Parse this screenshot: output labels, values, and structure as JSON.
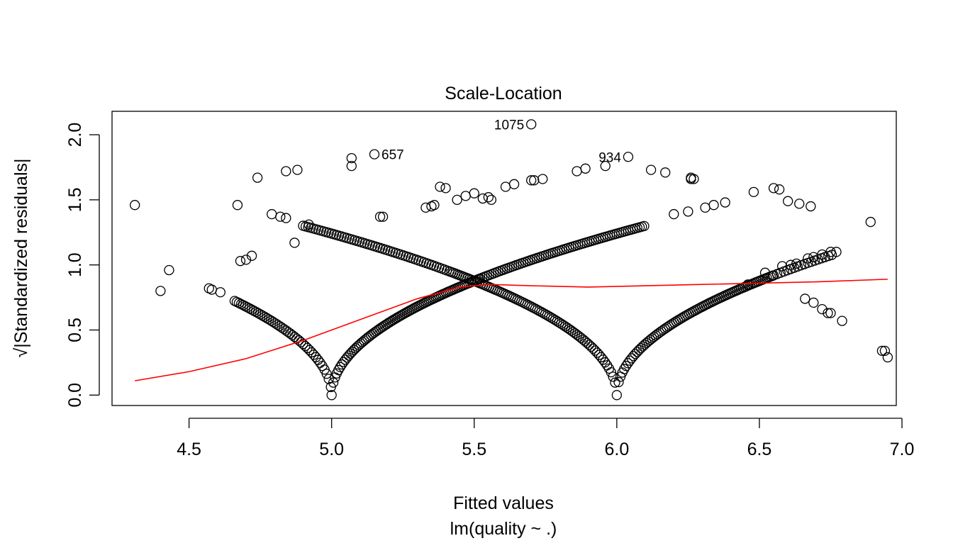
{
  "chart_data": {
    "type": "scatter",
    "title": "Scale-Location",
    "xlabel": "Fitted values",
    "subtitle": "lm(quality ~ .)",
    "ylabel": "√|Standardized residuals|",
    "xlim": [
      4.23,
      6.98
    ],
    "ylim": [
      -0.08,
      2.18
    ],
    "x_ticks": [
      4.5,
      5.0,
      5.5,
      6.0,
      6.5,
      7.0
    ],
    "x_tick_labels": [
      "4.5",
      "5.0",
      "5.5",
      "6.0",
      "6.5",
      "7.0"
    ],
    "y_ticks": [
      0.0,
      0.5,
      1.0,
      1.5,
      2.0
    ],
    "y_tick_labels": [
      "0.0",
      "0.5",
      "1.0",
      "1.5",
      "2.0"
    ],
    "grid": false,
    "series": [
      {
        "kind": "points",
        "color": "#000000",
        "points": [
          [
            4.31,
            1.46
          ],
          [
            4.4,
            0.8
          ],
          [
            4.43,
            0.96
          ],
          [
            4.57,
            0.82
          ],
          [
            4.58,
            0.81
          ],
          [
            4.61,
            0.79
          ],
          [
            4.67,
            1.46
          ],
          [
            4.68,
            1.03
          ],
          [
            4.7,
            1.04
          ],
          [
            4.72,
            1.07
          ],
          [
            4.74,
            1.67
          ],
          [
            4.79,
            1.39
          ],
          [
            4.82,
            1.37
          ],
          [
            4.84,
            1.36
          ],
          [
            4.84,
            1.72
          ],
          [
            4.87,
            1.17
          ],
          [
            4.88,
            1.73
          ],
          [
            4.92,
            1.31
          ],
          [
            5.07,
            1.82
          ],
          [
            5.07,
            1.76
          ],
          [
            5.15,
            1.85
          ],
          [
            5.17,
            1.37
          ],
          [
            5.18,
            1.37
          ],
          [
            5.38,
            1.6
          ],
          [
            5.4,
            1.59
          ],
          [
            5.5,
            1.55
          ],
          [
            5.55,
            1.52
          ],
          [
            5.61,
            1.6
          ],
          [
            5.64,
            1.62
          ],
          [
            5.7,
            1.65
          ],
          [
            5.71,
            1.65
          ],
          [
            5.74,
            1.66
          ],
          [
            5.7,
            2.08
          ],
          [
            5.86,
            1.72
          ],
          [
            5.89,
            1.74
          ],
          [
            5.96,
            1.76
          ],
          [
            6.04,
            1.83
          ],
          [
            6.12,
            1.73
          ],
          [
            6.17,
            1.71
          ],
          [
            6.26,
            1.67
          ],
          [
            6.26,
            1.66
          ],
          [
            6.27,
            1.66
          ],
          [
            6.2,
            1.39
          ],
          [
            6.25,
            1.41
          ],
          [
            6.31,
            1.44
          ],
          [
            6.34,
            1.46
          ],
          [
            6.38,
            1.48
          ],
          [
            6.48,
            1.56
          ],
          [
            6.55,
            1.59
          ],
          [
            6.57,
            1.58
          ],
          [
            6.6,
            1.49
          ],
          [
            6.64,
            1.47
          ],
          [
            6.68,
            1.45
          ],
          [
            6.89,
            1.33
          ],
          [
            6.79,
            0.57
          ],
          [
            6.93,
            0.34
          ],
          [
            6.94,
            0.34
          ],
          [
            6.95,
            0.29
          ],
          [
            6.77,
            1.1
          ],
          [
            6.75,
            1.1
          ],
          [
            6.72,
            1.08
          ],
          [
            6.69,
            1.06
          ],
          [
            6.67,
            1.05
          ],
          [
            6.63,
            1.01
          ],
          [
            6.61,
            1.0
          ],
          [
            6.58,
            0.99
          ],
          [
            6.52,
            0.94
          ],
          [
            6.46,
            0.85
          ],
          [
            6.72,
            0.66
          ],
          [
            6.74,
            0.63
          ],
          [
            6.75,
            0.63
          ],
          [
            6.69,
            0.71
          ],
          [
            6.66,
            0.74
          ],
          [
            5.33,
            1.44
          ],
          [
            5.35,
            1.45
          ],
          [
            5.36,
            1.46
          ],
          [
            5.44,
            1.5
          ],
          [
            5.47,
            1.53
          ],
          [
            5.53,
            1.51
          ],
          [
            5.56,
            1.5
          ]
        ]
      },
      {
        "kind": "smoother",
        "color": "#ff0000",
        "points": [
          [
            4.31,
            0.11
          ],
          [
            4.5,
            0.18
          ],
          [
            4.7,
            0.28
          ],
          [
            4.9,
            0.42
          ],
          [
            5.1,
            0.58
          ],
          [
            5.3,
            0.74
          ],
          [
            5.45,
            0.83
          ],
          [
            5.55,
            0.85
          ],
          [
            5.7,
            0.84
          ],
          [
            5.9,
            0.83
          ],
          [
            6.1,
            0.84
          ],
          [
            6.3,
            0.85
          ],
          [
            6.5,
            0.86
          ],
          [
            6.7,
            0.87
          ],
          [
            6.95,
            0.89
          ]
        ]
      }
    ],
    "annotations": [
      {
        "label": "1075",
        "x": 5.7,
        "y": 2.08,
        "side": "left"
      },
      {
        "label": "657",
        "x": 5.15,
        "y": 1.85,
        "side": "right"
      },
      {
        "label": "934",
        "x": 6.04,
        "y": 1.83,
        "side": "left"
      }
    ]
  }
}
